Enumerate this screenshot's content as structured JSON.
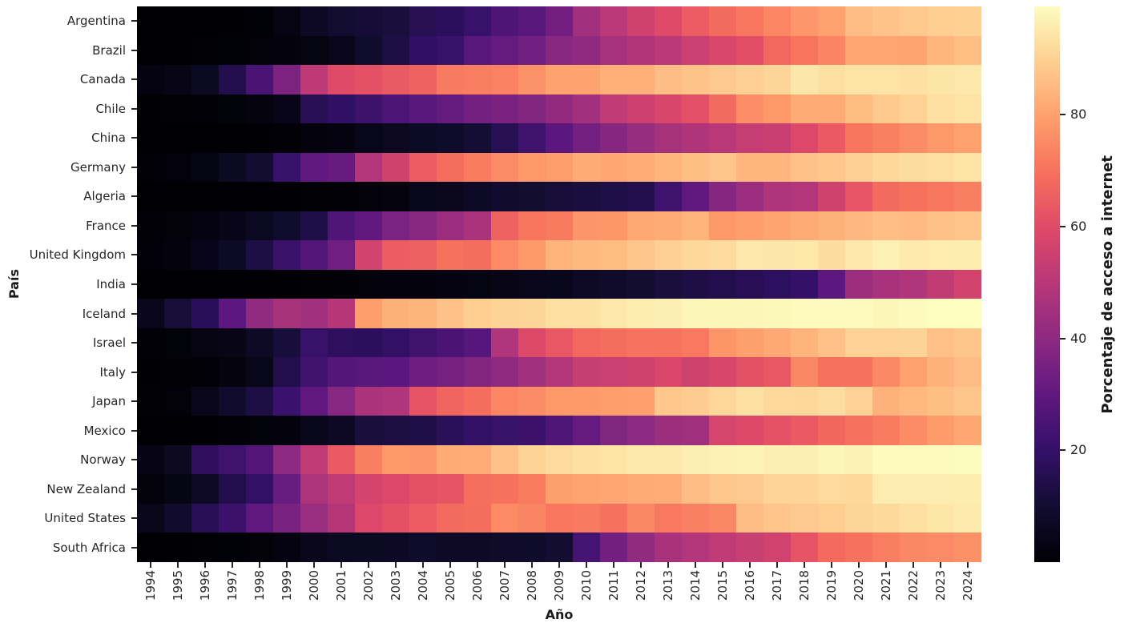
{
  "figure": {
    "background": "#ffffff"
  },
  "axes": {
    "x_title": "Año",
    "y_title": "País",
    "tick_color": "#262626"
  },
  "colorbar": {
    "label": "Porcentaje de acceso a internet",
    "tick_values": [
      20,
      40,
      60,
      80
    ],
    "vmin": 0,
    "vmax": 99.4,
    "colormap": "magma",
    "gradient_anchors": [
      "#000004",
      "#120d31",
      "#331068",
      "#5f187f",
      "#8c2981",
      "#b73779",
      "#de4968",
      "#f7705c",
      "#fe9f6d",
      "#fece91",
      "#fcfdbf"
    ]
  },
  "chart_data": {
    "type": "heatmap",
    "title": "",
    "xlabel": "Año",
    "ylabel": "País",
    "colorbar_label": "Porcentaje de acceso a internet",
    "colormap": "magma",
    "vmin": 0,
    "vmax": 99.4,
    "legend_position": "right-colorbar",
    "grid": false,
    "x": [
      1994,
      1995,
      1996,
      1997,
      1998,
      1999,
      2000,
      2001,
      2002,
      2003,
      2004,
      2005,
      2006,
      2007,
      2008,
      2009,
      2010,
      2011,
      2012,
      2013,
      2014,
      2015,
      2016,
      2017,
      2018,
      2019,
      2020,
      2021,
      2022,
      2023,
      2024
    ],
    "y": [
      "Argentina",
      "Brazil",
      "Canada",
      "Chile",
      "China",
      "Germany",
      "Algeria",
      "France",
      "United Kingdom",
      "India",
      "Iceland",
      "Israel",
      "Italy",
      "Japan",
      "Mexico",
      "Norway",
      "New Zealand",
      "United States",
      "South Africa"
    ],
    "values": [
      [
        0.0,
        0.1,
        0.1,
        0.3,
        0.8,
        3.3,
        7.0,
        9.8,
        10.9,
        11.9,
        16.0,
        17.7,
        20.9,
        25.9,
        28.1,
        34.0,
        45.0,
        51.0,
        55.8,
        59.9,
        64.7,
        68.0,
        71.0,
        74.3,
        77.7,
        80.0,
        85.5,
        87.2,
        88.4,
        89.2,
        90.0
      ],
      [
        0.0,
        0.1,
        0.4,
        0.8,
        1.5,
        2.0,
        2.9,
        4.5,
        9.1,
        13.2,
        19.1,
        21.0,
        28.2,
        30.9,
        33.8,
        39.2,
        40.7,
        45.7,
        48.6,
        51.0,
        54.6,
        58.3,
        60.9,
        67.5,
        70.4,
        73.9,
        81.3,
        80.7,
        80.5,
        84.2,
        86.0
      ],
      [
        2.5,
        4.2,
        6.8,
        15.1,
        24.9,
        36.2,
        51.3,
        60.2,
        61.6,
        64.2,
        66.0,
        71.7,
        72.4,
        73.2,
        76.7,
        80.3,
        80.3,
        83.0,
        83.0,
        85.8,
        87.1,
        88.5,
        89.8,
        91.0,
        94.6,
        93.0,
        93.8,
        94.0,
        93.5,
        94.3,
        94.8
      ],
      [
        0.2,
        0.4,
        0.7,
        1.2,
        2.1,
        4.1,
        16.6,
        19.1,
        22.1,
        25.4,
        28.2,
        31.2,
        34.5,
        35.9,
        37.3,
        41.2,
        45.0,
        52.2,
        55.1,
        58.0,
        61.1,
        68.0,
        76.0,
        78.0,
        82.3,
        82.3,
        85.6,
        88.3,
        90.2,
        93.2,
        94.1
      ],
      [
        0.0,
        0.0,
        0.0,
        0.1,
        0.2,
        0.7,
        1.8,
        2.6,
        4.6,
        6.2,
        7.3,
        8.5,
        10.5,
        16.0,
        22.6,
        28.9,
        34.3,
        38.3,
        42.3,
        45.8,
        47.9,
        50.3,
        53.2,
        54.3,
        59.2,
        64.1,
        70.6,
        73.1,
        75.6,
        78.0,
        80.0
      ],
      [
        0.9,
        1.8,
        3.0,
        6.7,
        9.9,
        20.8,
        30.2,
        31.6,
        48.8,
        55.9,
        64.7,
        68.7,
        72.2,
        75.2,
        78.0,
        79.0,
        82.0,
        81.3,
        82.4,
        84.2,
        86.2,
        87.6,
        84.2,
        84.4,
        87.0,
        88.1,
        89.8,
        91.4,
        92.5,
        93.0,
        93.8
      ],
      [
        0.0,
        0.0,
        0.0,
        0.0,
        0.1,
        0.2,
        0.5,
        0.6,
        1.6,
        2.2,
        4.6,
        5.8,
        7.4,
        9.5,
        10.2,
        11.2,
        12.5,
        14.0,
        15.2,
        22.5,
        29.5,
        38.2,
        42.9,
        47.7,
        49.0,
        56.0,
        62.9,
        68.0,
        70.0,
        71.2,
        72.5
      ],
      [
        0.7,
        1.6,
        2.6,
        4.1,
        6.3,
        9.1,
        14.3,
        26.3,
        30.2,
        36.1,
        39.1,
        42.9,
        46.9,
        66.1,
        70.7,
        71.6,
        77.3,
        77.8,
        81.4,
        81.9,
        83.8,
        78.0,
        79.3,
        80.5,
        82.0,
        83.3,
        84.7,
        86.1,
        85.3,
        86.8,
        87.4
      ],
      [
        1.0,
        1.9,
        4.1,
        7.4,
        13.7,
        21.3,
        26.8,
        33.5,
        56.5,
        64.8,
        65.6,
        70.0,
        68.8,
        75.1,
        78.4,
        83.6,
        85.0,
        85.4,
        87.5,
        89.8,
        91.6,
        92.0,
        94.8,
        94.6,
        94.9,
        92.5,
        94.8,
        96.7,
        95.3,
        95.7,
        96.0
      ],
      [
        0.0,
        0.0,
        0.0,
        0.1,
        0.1,
        0.3,
        0.5,
        0.7,
        1.5,
        1.7,
        2.0,
        2.4,
        2.8,
        4.0,
        4.4,
        5.1,
        7.5,
        8.6,
        10.1,
        11.9,
        13.5,
        14.9,
        16.5,
        18.2,
        20.1,
        29.2,
        43.4,
        46.3,
        48.2,
        52.4,
        56.5
      ],
      [
        5.4,
        11.2,
        16.8,
        29.2,
        41.0,
        46.0,
        44.5,
        49.4,
        79.1,
        83.1,
        83.9,
        87.0,
        89.5,
        90.6,
        91.0,
        93.0,
        93.4,
        94.8,
        96.2,
        96.5,
        98.2,
        98.2,
        98.2,
        98.3,
        99.0,
        99.0,
        99.0,
        98.2,
        98.8,
        99.4,
        99.4
      ],
      [
        0.6,
        1.2,
        2.7,
        4.2,
        7.5,
        11.8,
        20.9,
        18.0,
        17.8,
        19.6,
        22.6,
        25.2,
        27.9,
        48.1,
        59.4,
        63.1,
        67.5,
        68.9,
        70.3,
        70.3,
        71.5,
        77.4,
        79.7,
        81.6,
        83.9,
        86.8,
        90.3,
        90.1,
        90.5,
        86.6,
        87.7
      ],
      [
        0.3,
        0.5,
        1.0,
        2.2,
        4.6,
        14.4,
        23.1,
        27.2,
        28.0,
        29.0,
        33.2,
        35.0,
        37.5,
        40.8,
        44.5,
        48.8,
        53.7,
        54.4,
        55.8,
        58.5,
        55.6,
        58.1,
        61.3,
        63.1,
        74.4,
        69.6,
        70.0,
        74.9,
        79.9,
        83.3,
        85.5
      ],
      [
        0.4,
        1.6,
        4.4,
        9.2,
        13.4,
        21.4,
        30.0,
        38.5,
        46.6,
        48.4,
        62.4,
        66.9,
        68.7,
        74.3,
        75.4,
        78.0,
        78.2,
        79.1,
        79.5,
        88.2,
        89.1,
        91.1,
        93.2,
        91.7,
        91.3,
        92.7,
        90.2,
        83.5,
        84.9,
        86.2,
        87.5
      ],
      [
        0.0,
        0.1,
        0.2,
        0.6,
        1.3,
        1.9,
        5.1,
        7.0,
        11.9,
        12.9,
        14.1,
        17.2,
        19.5,
        20.8,
        21.7,
        26.3,
        31.1,
        37.2,
        39.8,
        43.5,
        44.4,
        57.4,
        59.5,
        62.0,
        63.9,
        67.0,
        70.1,
        72.0,
        75.6,
        78.6,
        81.2
      ],
      [
        3.8,
        6.5,
        18.3,
        22.6,
        27.0,
        40.0,
        52.0,
        64.0,
        72.8,
        78.1,
        77.7,
        82.0,
        82.5,
        86.9,
        90.6,
        92.1,
        93.4,
        94.0,
        95.0,
        95.1,
        96.3,
        96.8,
        97.3,
        96.5,
        96.5,
        98.0,
        97.0,
        99.0,
        99.0,
        99.0,
        99.2
      ],
      [
        1.5,
        3.5,
        7.5,
        14.6,
        19.3,
        32.0,
        47.4,
        52.0,
        57.0,
        59.0,
        61.3,
        62.7,
        69.0,
        69.8,
        72.0,
        79.7,
        80.5,
        81.2,
        81.9,
        82.5,
        85.5,
        88.2,
        88.5,
        90.8,
        90.8,
        92.0,
        91.5,
        95.9,
        95.9,
        95.9,
        96.0
      ],
      [
        4.9,
        9.2,
        16.4,
        21.6,
        30.1,
        35.8,
        43.1,
        49.1,
        59.0,
        61.7,
        64.8,
        68.0,
        68.9,
        75.0,
        74.0,
        71.0,
        71.7,
        69.7,
        74.7,
        71.4,
        73.0,
        74.6,
        85.5,
        87.3,
        88.5,
        89.4,
        90.9,
        91.8,
        93.0,
        94.5,
        95.5
      ],
      [
        0.1,
        0.3,
        0.5,
        0.8,
        1.5,
        2.4,
        5.3,
        6.3,
        6.7,
        7.0,
        8.4,
        7.5,
        7.6,
        8.1,
        8.4,
        10.0,
        24.0,
        34.0,
        41.0,
        46.5,
        49.0,
        51.9,
        54.0,
        56.2,
        62.4,
        68.2,
        70.0,
        72.3,
        74.7,
        75.2,
        76.5
      ]
    ]
  }
}
